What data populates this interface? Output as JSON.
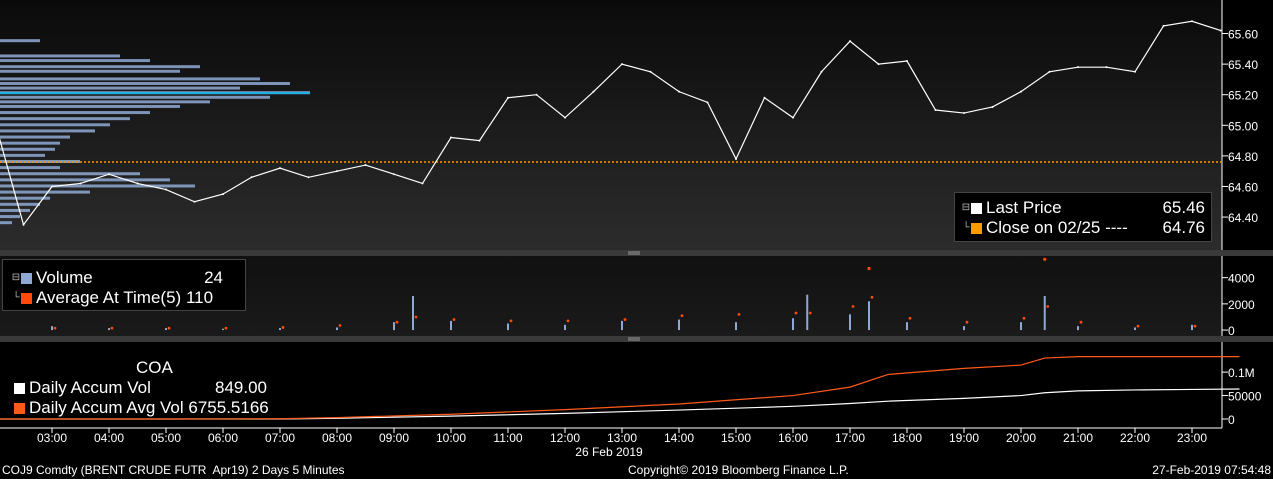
{
  "colors": {
    "price_line": "#ffffff",
    "close_line": "#ff9a00",
    "volume_bar": "#8fa9d4",
    "avg_marker": "#ff4a0a",
    "accum_vol": "#ffffff",
    "accum_avg": "#ff5a1a",
    "profile_bar": "#8fa9d4",
    "profile_poc": "#1ab2e8"
  },
  "price_panel": {
    "legend": {
      "last_price_label": "Last Price",
      "last_price_value": "65.46",
      "close_label": "Close on 02/25 ---- ",
      "close_value": "64.76"
    }
  },
  "volume_panel": {
    "legend": {
      "volume_label": "Volume",
      "volume_value": "24",
      "avg_label": "Average At Time(5)",
      "avg_value": "110"
    }
  },
  "accum_panel": {
    "legend": {
      "ticker": "COA",
      "accum_label": "Daily Accum Vol",
      "accum_value": "849.00",
      "avg_label": "Daily Accum Avg Vol",
      "avg_value": "6755.5166"
    }
  },
  "x_axis": {
    "ticks": [
      "03:00",
      "04:00",
      "05:00",
      "06:00",
      "07:00",
      "08:00",
      "09:00",
      "10:00",
      "11:00",
      "12:00",
      "13:00",
      "14:00",
      "15:00",
      "16:00",
      "17:00",
      "18:00",
      "19:00",
      "20:00",
      "21:00",
      "22:00",
      "23:00"
    ],
    "date_label": "26 Feb 2019"
  },
  "footer": {
    "left": "COJ9 Comdty (BRENT CRUDE FUTR  Apr19) 2 Days 5 Minutes",
    "center": "Copyright© 2019 Bloomberg Finance L.P.",
    "right": "27-Feb-2019 07:54:48"
  },
  "chart_data": [
    {
      "type": "line",
      "name": "price",
      "x": [
        "02:00",
        "02:30",
        "03:00",
        "03:30",
        "04:00",
        "04:30",
        "05:00",
        "05:30",
        "06:00",
        "06:30",
        "07:00",
        "07:30",
        "08:00",
        "08:30",
        "09:00",
        "09:30",
        "10:00",
        "10:30",
        "11:00",
        "11:30",
        "12:00",
        "12:30",
        "13:00",
        "13:30",
        "14:00",
        "14:30",
        "15:00",
        "15:30",
        "16:00",
        "16:30",
        "17:00",
        "17:30",
        "18:00",
        "18:30",
        "19:00",
        "19:30",
        "20:00",
        "20:30",
        "21:00",
        "21:30",
        "22:00",
        "22:30",
        "23:00",
        "23:30"
      ],
      "series": [
        {
          "name": "Last Price",
          "values": [
            65.02,
            64.35,
            64.6,
            64.62,
            64.68,
            64.62,
            64.58,
            64.5,
            64.55,
            64.66,
            64.72,
            64.66,
            64.7,
            64.74,
            64.68,
            64.62,
            64.92,
            64.9,
            65.18,
            65.2,
            65.05,
            65.22,
            65.4,
            65.35,
            65.22,
            65.15,
            64.78,
            65.18,
            65.05,
            65.35,
            65.55,
            65.4,
            65.42,
            65.1,
            65.08,
            65.12,
            65.22,
            65.35,
            65.38,
            65.38,
            65.35,
            65.65,
            65.68,
            65.62
          ]
        }
      ],
      "close_line": 64.76,
      "ylim": [
        64.25,
        65.78
      ],
      "y_ticks": [
        64.4,
        64.6,
        64.8,
        65.0,
        65.2,
        65.4,
        65.6
      ],
      "y_tick_labels": [
        "64.40",
        "64.60",
        "64.80",
        "65.00",
        "65.20",
        "65.40",
        "65.60"
      ]
    },
    {
      "type": "bar",
      "name": "volume",
      "categories": [
        "03:00",
        "04:00",
        "05:00",
        "06:00",
        "07:00",
        "08:00",
        "09:00",
        "09:20",
        "10:00",
        "11:00",
        "12:00",
        "13:00",
        "14:00",
        "15:00",
        "16:00",
        "16:15",
        "17:00",
        "17:20",
        "18:00",
        "19:00",
        "20:00",
        "20:25",
        "21:00",
        "22:00",
        "23:00"
      ],
      "series": [
        {
          "name": "Volume",
          "values": [
            300,
            150,
            150,
            100,
            150,
            200,
            600,
            2600,
            700,
            500,
            400,
            700,
            800,
            600,
            900,
            2700,
            1200,
            2200,
            600,
            300,
            600,
            2600,
            300,
            200,
            400
          ]
        },
        {
          "name": "Average At Time(5)",
          "values": [
            150,
            150,
            150,
            150,
            200,
            350,
            600,
            1000,
            800,
            700,
            700,
            800,
            1100,
            1200,
            1300,
            1300,
            1800,
            2500,
            900,
            600,
            900,
            1800,
            600,
            300,
            300
          ]
        }
      ],
      "outlier_markers": [
        {
          "x": "17:20",
          "value": 4700
        },
        {
          "x": "20:25",
          "value": 5400
        }
      ],
      "ylim": [
        -300,
        5500
      ],
      "y_ticks": [
        0,
        2000,
        4000
      ],
      "y_tick_labels": [
        "0",
        "2000",
        "4000"
      ]
    },
    {
      "type": "line",
      "name": "accumulated volume",
      "x": [
        "02:00",
        "05:00",
        "07:00",
        "08:00",
        "10:00",
        "12:00",
        "14:00",
        "16:00",
        "17:00",
        "17:40",
        "19:00",
        "20:00",
        "20:25",
        "21:00",
        "22:00",
        "23:00",
        "23:50"
      ],
      "series": [
        {
          "name": "Daily Accum Vol",
          "values": [
            0,
            0,
            0,
            1500,
            6000,
            12000,
            19000,
            27000,
            33000,
            38000,
            44000,
            50000,
            56000,
            60000,
            62000,
            63000,
            64000
          ]
        },
        {
          "name": "Daily Accum Avg Vol",
          "values": [
            0,
            0,
            500,
            3000,
            10000,
            20000,
            32000,
            50000,
            68000,
            95000,
            108000,
            115000,
            130000,
            133000,
            133000,
            133000,
            133000
          ]
        }
      ],
      "ylim": [
        -15000,
        160000
      ],
      "y_ticks": [
        0,
        50000,
        100000
      ],
      "y_tick_labels": [
        "0",
        "50000",
        "0.1M"
      ]
    }
  ]
}
